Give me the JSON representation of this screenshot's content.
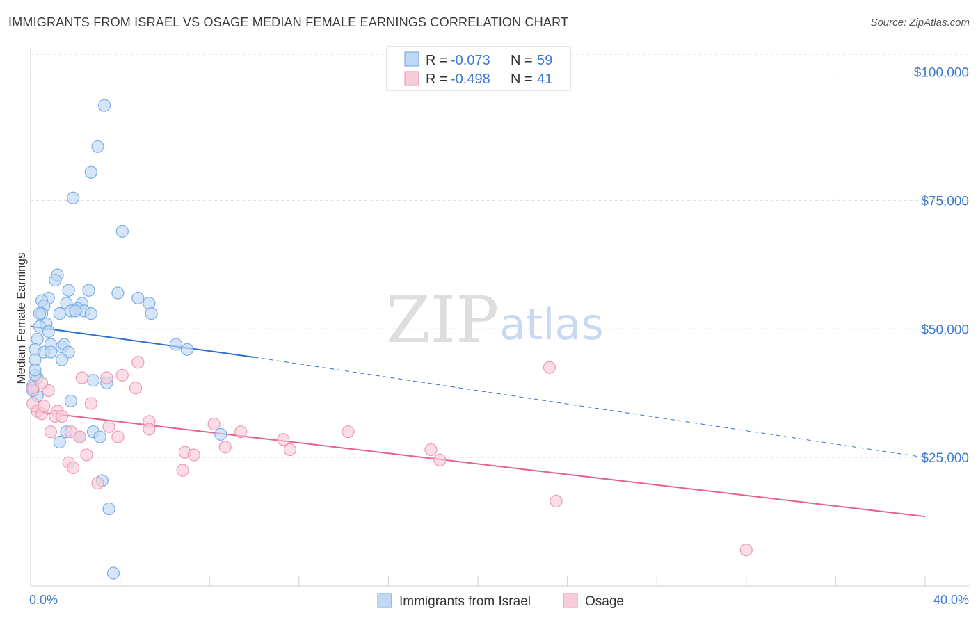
{
  "chart_data": {
    "type": "scatter",
    "title": "IMMIGRANTS FROM ISRAEL VS OSAGE MEDIAN FEMALE EARNINGS CORRELATION CHART",
    "source": "Source: ZipAtlas.com",
    "xlabel": "",
    "ylabel": "Median Female Earnings",
    "xlim": [
      0,
      40
    ],
    "ylim": [
      0,
      104000
    ],
    "x_tick_labels": [
      "0.0%",
      "40.0%"
    ],
    "y_ticks": [
      25000,
      50000,
      75000,
      100000
    ],
    "y_tick_labels": [
      "$25,000",
      "$50,000",
      "$75,000",
      "$100,000"
    ],
    "grid": true,
    "watermark": {
      "zip": "ZIP",
      "atlas": "atlas"
    },
    "legend_stats": [
      {
        "r_label": "R =",
        "r_value": "-0.073",
        "n_label": "N =",
        "n_value": "59"
      },
      {
        "r_label": "R =",
        "r_value": "-0.498",
        "n_label": "N =",
        "n_value": "41"
      }
    ],
    "series": [
      {
        "name": "Immigrants from Israel",
        "color": "#7aaee6",
        "fill": "#c0d8f4",
        "trend_color": "#2f6fd0",
        "trend": {
          "x0": 0,
          "y0": 50500,
          "x1": 10,
          "y1": 44500,
          "dash_to_x": 40,
          "dash_to_y": 25000
        },
        "points": [
          [
            3.3,
            93500
          ],
          [
            3.0,
            85500
          ],
          [
            2.7,
            80500
          ],
          [
            1.9,
            75500
          ],
          [
            4.1,
            69000
          ],
          [
            1.2,
            60500
          ],
          [
            1.1,
            59500
          ],
          [
            0.8,
            56000
          ],
          [
            0.5,
            55500
          ],
          [
            1.7,
            57500
          ],
          [
            2.6,
            57500
          ],
          [
            3.9,
            57000
          ],
          [
            4.8,
            56000
          ],
          [
            0.6,
            54500
          ],
          [
            1.6,
            55000
          ],
          [
            2.3,
            55000
          ],
          [
            2.1,
            54000
          ],
          [
            2.4,
            53500
          ],
          [
            0.5,
            53000
          ],
          [
            0.4,
            53000
          ],
          [
            1.3,
            53000
          ],
          [
            2.7,
            53000
          ],
          [
            5.3,
            55000
          ],
          [
            5.4,
            53000
          ],
          [
            0.7,
            51000
          ],
          [
            0.4,
            50500
          ],
          [
            0.8,
            49500
          ],
          [
            1.8,
            53500
          ],
          [
            2.0,
            53500
          ],
          [
            0.3,
            48000
          ],
          [
            0.2,
            46000
          ],
          [
            0.9,
            47000
          ],
          [
            1.4,
            46500
          ],
          [
            1.5,
            47000
          ],
          [
            0.6,
            45500
          ],
          [
            0.9,
            45500
          ],
          [
            1.7,
            45500
          ],
          [
            1.4,
            44000
          ],
          [
            6.5,
            47000
          ],
          [
            7.0,
            46000
          ],
          [
            0.2,
            44000
          ],
          [
            0.3,
            40500
          ],
          [
            2.8,
            40000
          ],
          [
            3.4,
            39500
          ],
          [
            0.3,
            37000
          ],
          [
            1.8,
            36000
          ],
          [
            1.6,
            30000
          ],
          [
            2.8,
            30000
          ],
          [
            3.1,
            29000
          ],
          [
            8.5,
            29500
          ],
          [
            1.3,
            28000
          ],
          [
            2.2,
            29000
          ],
          [
            3.2,
            20500
          ],
          [
            3.5,
            15000
          ],
          [
            3.7,
            2500
          ],
          [
            0.1,
            39000
          ],
          [
            0.1,
            38000
          ],
          [
            0.2,
            41000
          ],
          [
            0.2,
            42000
          ]
        ]
      },
      {
        "name": "Osage",
        "color": "#ef9ab5",
        "fill": "#f8cbd9",
        "trend_color": "#e8608c",
        "trend": {
          "x0": 0,
          "y0": 34000,
          "x1": 40,
          "y1": 13500
        },
        "points": [
          [
            0.1,
            38500
          ],
          [
            0.1,
            35500
          ],
          [
            0.3,
            34000
          ],
          [
            0.5,
            33500
          ],
          [
            0.8,
            38000
          ],
          [
            1.2,
            34000
          ],
          [
            1.1,
            33000
          ],
          [
            1.4,
            33000
          ],
          [
            2.3,
            40500
          ],
          [
            3.4,
            40500
          ],
          [
            4.1,
            41000
          ],
          [
            4.8,
            43500
          ],
          [
            4.7,
            38500
          ],
          [
            2.7,
            35500
          ],
          [
            0.9,
            30000
          ],
          [
            1.8,
            30000
          ],
          [
            2.2,
            29000
          ],
          [
            3.5,
            31000
          ],
          [
            3.9,
            29000
          ],
          [
            5.3,
            32000
          ],
          [
            5.3,
            30500
          ],
          [
            8.2,
            31500
          ],
          [
            9.4,
            30000
          ],
          [
            14.2,
            30000
          ],
          [
            11.3,
            28500
          ],
          [
            8.7,
            27000
          ],
          [
            11.6,
            26500
          ],
          [
            6.9,
            26000
          ],
          [
            7.3,
            25500
          ],
          [
            2.5,
            25500
          ],
          [
            1.7,
            24000
          ],
          [
            1.9,
            23000
          ],
          [
            6.8,
            22500
          ],
          [
            3.0,
            20000
          ],
          [
            17.9,
            26500
          ],
          [
            18.3,
            24500
          ],
          [
            23.2,
            42500
          ],
          [
            23.5,
            16500
          ],
          [
            32.0,
            7000
          ],
          [
            0.5,
            39500
          ],
          [
            0.6,
            35000
          ]
        ]
      }
    ]
  }
}
